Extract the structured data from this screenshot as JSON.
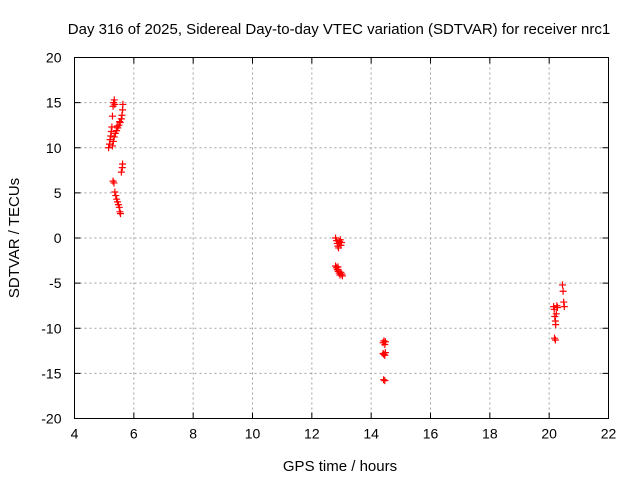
{
  "chart_data": {
    "type": "scatter",
    "title": "Day 316 of 2025, Sidereal Day-to-day VTEC variation (SDTVAR) for receiver nrc1",
    "xlabel": "GPS time / hours",
    "ylabel": "SDTVAR / TECUs",
    "xlim": [
      4,
      22
    ],
    "ylim": [
      -20,
      20
    ],
    "xticks": [
      4,
      6,
      8,
      10,
      12,
      14,
      16,
      18,
      20,
      22
    ],
    "yticks": [
      -20,
      -15,
      -10,
      -5,
      0,
      5,
      10,
      15,
      20
    ],
    "grid": true,
    "marker": "plus",
    "series": [
      {
        "name": "SDTVAR",
        "color": "#ff0000",
        "points": [
          [
            5.15,
            10.0
          ],
          [
            5.18,
            10.4
          ],
          [
            5.2,
            10.9
          ],
          [
            5.22,
            11.3
          ],
          [
            5.24,
            11.8
          ],
          [
            5.26,
            12.3
          ],
          [
            5.28,
            13.5
          ],
          [
            5.3,
            14.6
          ],
          [
            5.32,
            15.0
          ],
          [
            5.34,
            15.3
          ],
          [
            5.36,
            14.8
          ],
          [
            5.28,
            10.2
          ],
          [
            5.31,
            10.7
          ],
          [
            5.34,
            11.2
          ],
          [
            5.38,
            11.6
          ],
          [
            5.42,
            11.9
          ],
          [
            5.46,
            12.2
          ],
          [
            5.5,
            12.5
          ],
          [
            5.54,
            12.8
          ],
          [
            5.58,
            13.2
          ],
          [
            5.6,
            13.6
          ],
          [
            5.62,
            14.2
          ],
          [
            5.63,
            14.8
          ],
          [
            5.44,
            12.4
          ],
          [
            5.52,
            12.9
          ],
          [
            5.3,
            6.3
          ],
          [
            5.33,
            6.1
          ],
          [
            5.36,
            5.1
          ],
          [
            5.39,
            4.7
          ],
          [
            5.42,
            4.3
          ],
          [
            5.45,
            4.0
          ],
          [
            5.48,
            3.7
          ],
          [
            5.51,
            3.4
          ],
          [
            5.53,
            2.9
          ],
          [
            5.55,
            2.7
          ],
          [
            5.58,
            7.3
          ],
          [
            5.61,
            7.8
          ],
          [
            5.62,
            8.2
          ],
          [
            12.8,
            0.0
          ],
          [
            12.83,
            -0.3
          ],
          [
            12.86,
            -0.6
          ],
          [
            12.88,
            -0.9
          ],
          [
            12.9,
            -1.1
          ],
          [
            12.93,
            -0.4
          ],
          [
            12.96,
            -0.2
          ],
          [
            12.98,
            -0.8
          ],
          [
            13.0,
            -0.5
          ],
          [
            12.8,
            -3.1
          ],
          [
            12.83,
            -3.3
          ],
          [
            12.86,
            -3.5
          ],
          [
            12.89,
            -3.7
          ],
          [
            12.92,
            -3.9
          ],
          [
            12.95,
            -4.1
          ],
          [
            12.98,
            -3.8
          ],
          [
            13.01,
            -4.0
          ],
          [
            13.03,
            -4.2
          ],
          [
            12.88,
            -3.2
          ],
          [
            14.4,
            -11.6
          ],
          [
            14.43,
            -11.4
          ],
          [
            14.46,
            -11.8
          ],
          [
            14.48,
            -11.5
          ],
          [
            14.4,
            -12.8
          ],
          [
            14.43,
            -12.9
          ],
          [
            14.46,
            -13.0
          ],
          [
            14.48,
            -12.7
          ],
          [
            14.42,
            -15.7
          ],
          [
            14.46,
            -15.8
          ],
          [
            20.15,
            -7.6
          ],
          [
            20.17,
            -7.9
          ],
          [
            20.19,
            -8.7
          ],
          [
            20.21,
            -9.2
          ],
          [
            20.22,
            -9.6
          ],
          [
            20.24,
            -8.4
          ],
          [
            20.26,
            -7.5
          ],
          [
            20.28,
            -7.7
          ],
          [
            20.18,
            -11.1
          ],
          [
            20.21,
            -11.3
          ],
          [
            20.45,
            -5.2
          ],
          [
            20.47,
            -5.9
          ],
          [
            20.49,
            -7.1
          ],
          [
            20.51,
            -7.6
          ]
        ]
      }
    ]
  }
}
